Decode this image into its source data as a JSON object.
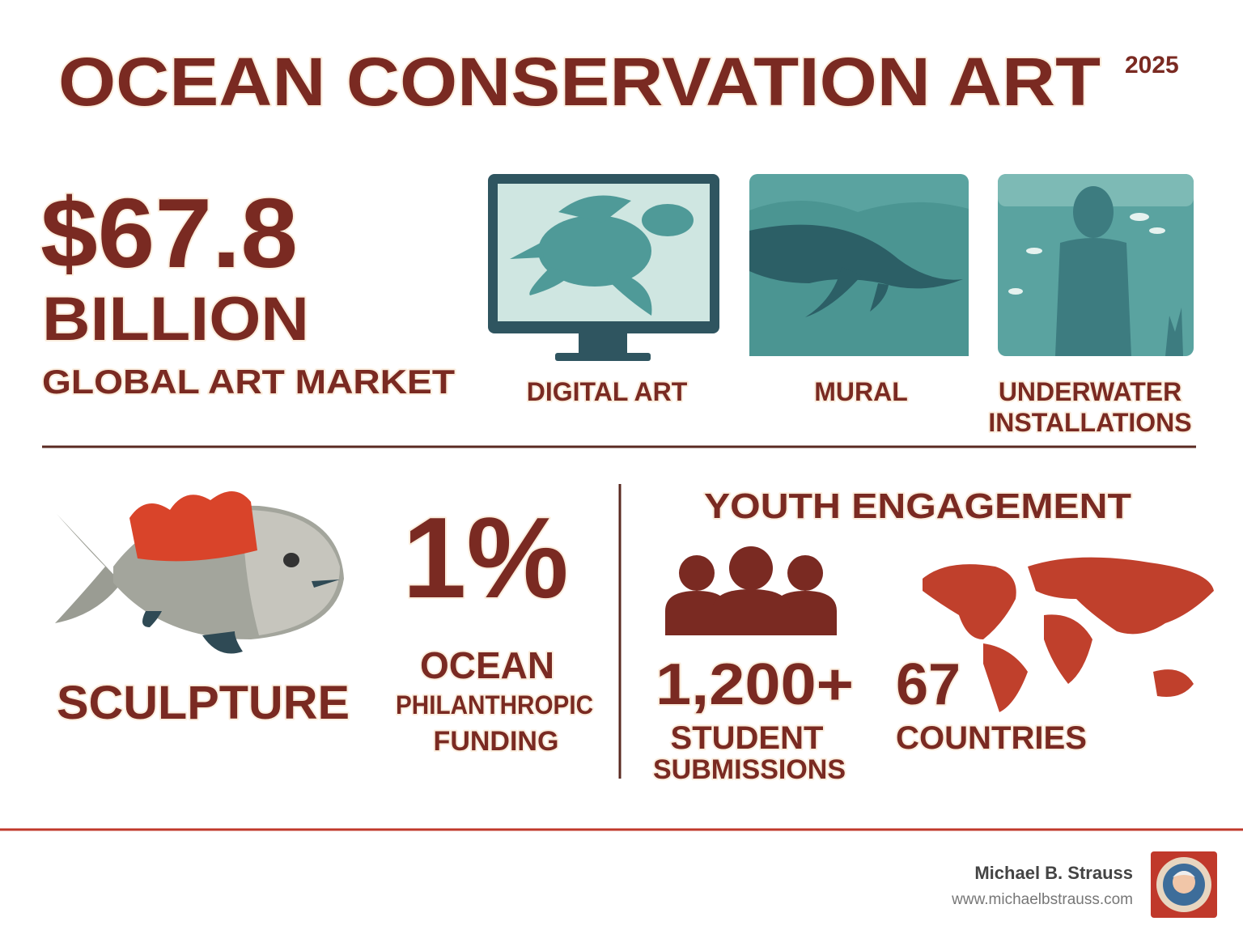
{
  "header": {
    "title": "OCEAN CONSERVATION ART",
    "year": "2025"
  },
  "market": {
    "value": "$67.8",
    "unit": "BILLION",
    "label": "GLOBAL ART MARKET"
  },
  "art_forms": [
    {
      "label_lines": [
        "DIGITAL ART"
      ]
    },
    {
      "label_lines": [
        "MURAL"
      ]
    },
    {
      "label_lines": [
        "UNDERWATER",
        "INSTALLATIONS"
      ]
    },
    {
      "label_lines": [
        "SCULPTURE"
      ]
    }
  ],
  "funding": {
    "value": "1%",
    "label_lines": [
      "OCEAN",
      "PHILANTHROPIC",
      "FUNDING"
    ]
  },
  "youth": {
    "title": "YOUTH ENGAGEMENT",
    "submissions": {
      "value": "1,200+",
      "label_lines": [
        "STUDENT",
        "SUBMISSIONS"
      ]
    },
    "countries": {
      "value": "67",
      "label": "COUNTRIES"
    }
  },
  "footer": {
    "author": "Michael B. Strauss",
    "url": "www.michaelbstrauss.com"
  }
}
